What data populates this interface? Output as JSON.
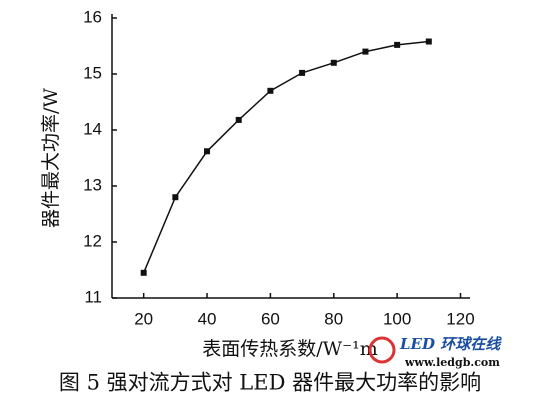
{
  "chart_data": {
    "type": "line",
    "y_label": "器件最大功率/W",
    "x_label": "表面传热系数/W⁻¹m",
    "caption": "图 5  强对流方式对 LED 器件最大功率的影响",
    "watermark": "LED 环球在线",
    "watermark_url": "www.ledgb.com",
    "x": [
      20,
      30,
      40,
      50,
      60,
      70,
      80,
      90,
      100,
      110
    ],
    "series": [
      {
        "color": "#111111",
        "values": [
          11.45,
          12.8,
          13.62,
          14.18,
          14.7,
          15.02,
          15.2,
          15.4,
          15.52,
          15.58
        ]
      }
    ],
    "xlim": [
      10,
      123
    ],
    "xticks": [
      20,
      40,
      60,
      80,
      100,
      120
    ],
    "ylim": [
      11,
      16
    ],
    "yticks": [
      11,
      12,
      13,
      14,
      15,
      16
    ]
  }
}
